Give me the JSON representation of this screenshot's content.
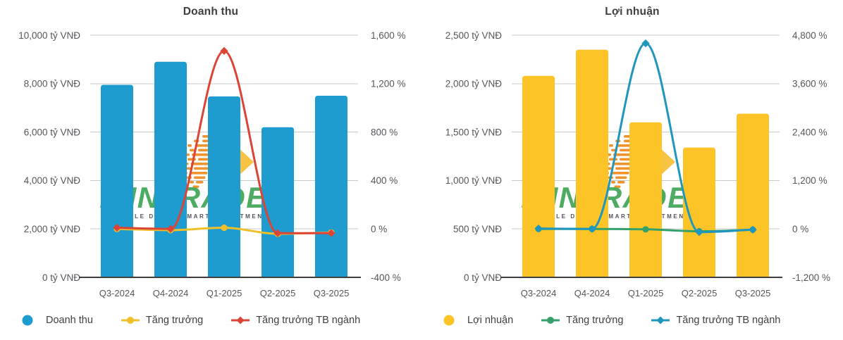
{
  "watermark": {
    "brand": "FIINTRADE",
    "tagline": "VALUABLE DATA - SMART INVESTMENT",
    "brand_color": "#3ea554",
    "dot_color": "#ee8a1e",
    "arrow_color": "#f6be35",
    "tagline_color": "#45454f"
  },
  "chart_data": [
    {
      "type": "bar",
      "subtype": "column-with-spline-lines",
      "title": "Doanh thu",
      "categories": [
        "Q3-2024",
        "Q4-2024",
        "Q1-2025",
        "Q2-2025",
        "Q3-2025"
      ],
      "y_left": {
        "min": 0,
        "max": 10000,
        "step": 2000,
        "unit": "tỷ VNĐ",
        "ticks": [
          "0 tỷ VNĐ",
          "2,000 tỷ VNĐ",
          "4,000 tỷ VNĐ",
          "6,000 tỷ VNĐ",
          "8,000 tỷ VNĐ",
          "10,000 tỷ VNĐ"
        ]
      },
      "y_right": {
        "min": -400,
        "max": 1600,
        "step": 400,
        "unit": "%",
        "ticks": [
          "-400 %",
          "0 %",
          "400 %",
          "800 %",
          "1,200 %",
          "1,600 %"
        ]
      },
      "series": [
        {
          "name": "Doanh thu",
          "kind": "column",
          "axis": "left",
          "color": "#1e9cd0",
          "values": [
            7950,
            8900,
            7470,
            6200,
            7500
          ]
        },
        {
          "name": "Tăng trưởng",
          "kind": "spline",
          "axis": "right",
          "color": "#f0c02b",
          "marker": "circle",
          "values": [
            0,
            -10,
            10,
            -40,
            -30
          ]
        },
        {
          "name": "Tăng trưởng TB ngành",
          "kind": "spline",
          "axis": "right",
          "color": "#db4537",
          "marker": "diamond",
          "values": [
            10,
            0,
            1470,
            -35,
            -35
          ]
        }
      ],
      "grid": true,
      "legend_position": "bottom-left"
    },
    {
      "type": "bar",
      "subtype": "column-with-spline-lines",
      "title": "Lợi nhuận",
      "categories": [
        "Q3-2024",
        "Q4-2024",
        "Q1-2025",
        "Q2-2025",
        "Q3-2025"
      ],
      "y_left": {
        "min": 0,
        "max": 2500,
        "step": 500,
        "unit": "tỷ VNĐ",
        "ticks": [
          "0 tỷ VNĐ",
          "500 tỷ VNĐ",
          "1,000 tỷ VNĐ",
          "1,500 tỷ VNĐ",
          "2,000 tỷ VNĐ",
          "2,500 tỷ VNĐ"
        ]
      },
      "y_right": {
        "min": -1200,
        "max": 4800,
        "step": 1200,
        "unit": "%",
        "ticks": [
          "-1,200 %",
          "0 %",
          "1,200 %",
          "2,400 %",
          "3,600 %",
          "4,800 %"
        ]
      },
      "series": [
        {
          "name": "Lợi nhuận",
          "kind": "column",
          "axis": "left",
          "color": "#fdc428",
          "values": [
            2080,
            2350,
            1600,
            1340,
            1690
          ]
        },
        {
          "name": "Tăng trưởng",
          "kind": "spline",
          "axis": "right",
          "color": "#34a16b",
          "marker": "circle",
          "values": [
            0,
            0,
            -10,
            -60,
            -20
          ]
        },
        {
          "name": "Tăng trưởng TB ngành",
          "kind": "spline",
          "axis": "right",
          "color": "#1e96bd",
          "marker": "diamond",
          "values": [
            10,
            0,
            4600,
            -80,
            -20
          ]
        }
      ],
      "grid": true,
      "legend_position": "bottom-left"
    }
  ]
}
